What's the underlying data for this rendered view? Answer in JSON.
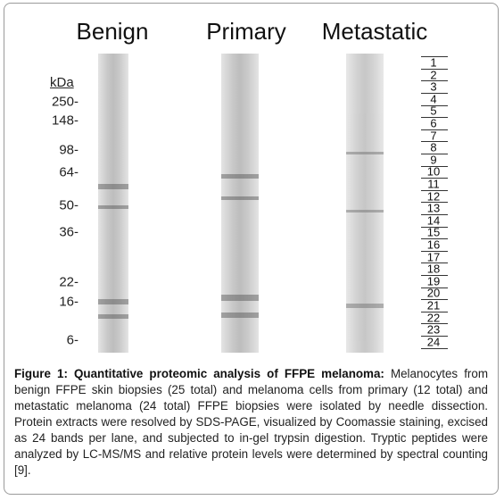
{
  "lanes": [
    "Benign",
    "Primary",
    "Metastatic"
  ],
  "markers": {
    "unit": "kDa",
    "labels": [
      "250-",
      "148-",
      "98-",
      "64-",
      "50-",
      "36-",
      "22-",
      "16-",
      "6-"
    ]
  },
  "bands": [
    "1",
    "2",
    "3",
    "4",
    "5",
    "6",
    "7",
    "8",
    "9",
    "10",
    "11",
    "12",
    "13",
    "14",
    "15",
    "16",
    "17",
    "18",
    "19",
    "20",
    "21",
    "22",
    "23",
    "24"
  ],
  "caption": {
    "title": "Figure 1: Quantitative proteomic analysis of FFPE melanoma:",
    "text": "Melanocytes from benign FFPE skin biopsies (25 total) and melanoma cells from primary (12 total) and metastatic melanoma (24 total) FFPE biopsies were isolated by needle dissection. Protein extracts were resolved by SDS-PAGE, visualized by Coomassie staining, excised as 24 bands per lane, and subjected to in-gel trypsin digestion. Tryptic peptides were analyzed by LC-MS/MS and relative protein levels were determined by spectral counting [9]."
  }
}
